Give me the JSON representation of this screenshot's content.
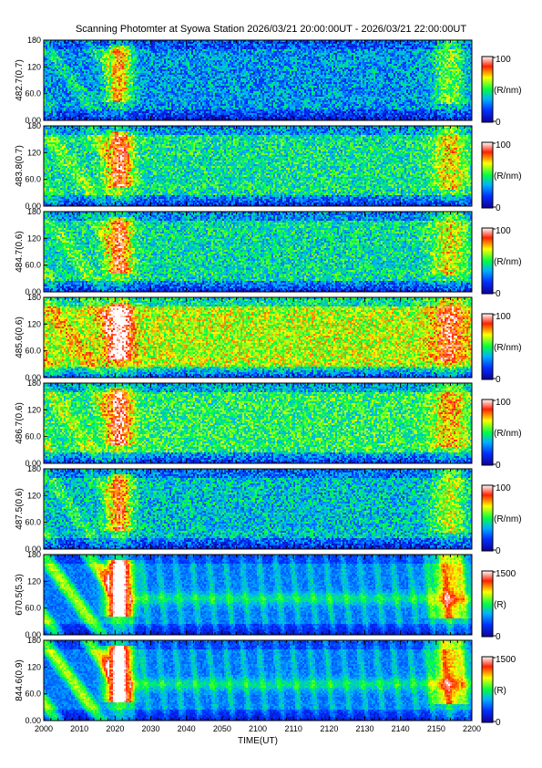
{
  "chart_data": {
    "type": "heatmap",
    "title": "Scanning Photomter at Syowa Station 2026/03/21 20:00:00UT - 2026/03/21 22:00:00UT",
    "xlabel": "TIME(UT)",
    "x_ticks": [
      "2000",
      "2010",
      "2020",
      "2030",
      "2040",
      "2050",
      "2100",
      "2110",
      "2120",
      "2130",
      "2140",
      "2150",
      "2200"
    ],
    "y_ticks": [
      "0.00",
      "60.0",
      "120",
      "180"
    ],
    "ylim": [
      0,
      180
    ],
    "panels": [
      {
        "ylabel": "482.7(0.7)",
        "colorbar_min": "0",
        "colorbar_max": "100",
        "colorbar_unit": "(R/nm)",
        "intensity": 0.35
      },
      {
        "ylabel": "483.8(0.7)",
        "colorbar_min": "0",
        "colorbar_max": "100",
        "colorbar_unit": "(R/nm)",
        "intensity": 0.5
      },
      {
        "ylabel": "484.7(0.6)",
        "colorbar_min": "0",
        "colorbar_max": "100",
        "colorbar_unit": "(R/nm)",
        "intensity": 0.48
      },
      {
        "ylabel": "485.6(0.6)",
        "colorbar_min": "0",
        "colorbar_max": "100",
        "colorbar_unit": "(R/nm)",
        "intensity": 0.7
      },
      {
        "ylabel": "486.7(0.6)",
        "colorbar_min": "0",
        "colorbar_max": "100",
        "colorbar_unit": "(R/nm)",
        "intensity": 0.55
      },
      {
        "ylabel": "487.5(0.6)",
        "colorbar_min": "0",
        "colorbar_max": "100",
        "colorbar_unit": "(R/nm)",
        "intensity": 0.42
      },
      {
        "ylabel": "670.5(5.3)",
        "colorbar_min": "0",
        "colorbar_max": "1500",
        "colorbar_unit": "(R)",
        "intensity": 0.3
      },
      {
        "ylabel": "844.6(0.9)",
        "colorbar_min": "0",
        "colorbar_max": "1500",
        "colorbar_unit": "(R)",
        "intensity": 0.33
      }
    ]
  }
}
